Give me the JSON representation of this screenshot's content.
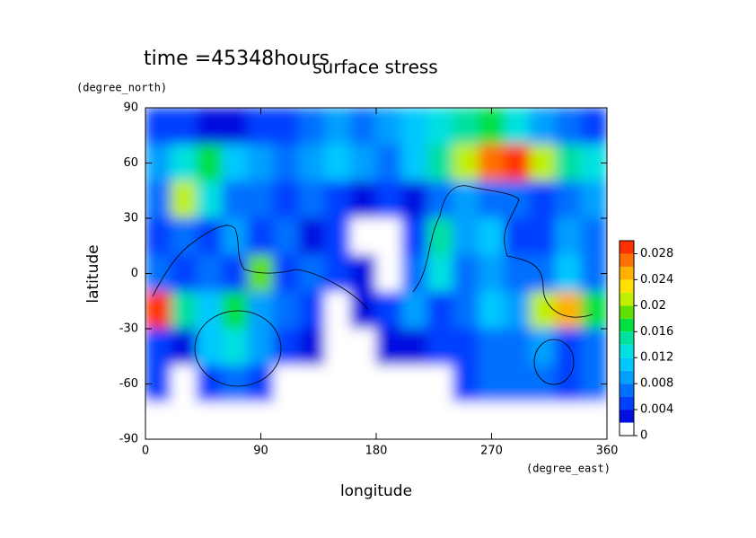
{
  "chart_data": {
    "type": "contour",
    "title": "time =45348hours",
    "subtitle": "surface stress",
    "x_label": "longitude",
    "x_unit": "(degree_east)",
    "y_label": "latitude",
    "y_unit": "(degree_north)",
    "xlim": [
      0,
      360
    ],
    "xticks": [
      0,
      90,
      180,
      270,
      360
    ],
    "ylim": [
      -90,
      90
    ],
    "yticks": [
      -90,
      -60,
      -30,
      0,
      30,
      60,
      90
    ],
    "x": [
      10,
      30,
      50,
      70,
      90,
      110,
      130,
      150,
      170,
      190,
      210,
      230,
      250,
      270,
      290,
      310,
      330,
      350
    ],
    "y": [
      80,
      60,
      40,
      20,
      0,
      -20,
      -40,
      -60,
      -80
    ],
    "z": [
      [
        0.004,
        0.004,
        0.003,
        0.003,
        0.004,
        0.005,
        0.006,
        0.008,
        0.006,
        0.008,
        0.01,
        0.012,
        0.014,
        0.016,
        0.012,
        0.008,
        0.006,
        0.004
      ],
      [
        0.008,
        0.012,
        0.016,
        0.01,
        0.008,
        0.006,
        0.008,
        0.01,
        0.008,
        0.006,
        0.01,
        0.014,
        0.02,
        0.026,
        0.03,
        0.02,
        0.014,
        0.012
      ],
      [
        0.006,
        0.02,
        0.012,
        0.006,
        0.006,
        0.004,
        0.006,
        0.004,
        0.002,
        0.004,
        0.002,
        0.006,
        0.008,
        0.006,
        0.006,
        0.004,
        0.006,
        0.008
      ],
      [
        0.004,
        0.006,
        0.004,
        0.008,
        0.004,
        0.006,
        0.002,
        0.004,
        0.001,
        0.001,
        0.004,
        0.014,
        0.008,
        0.01,
        0.004,
        0.004,
        0.008,
        0.006
      ],
      [
        0.006,
        0.004,
        0.006,
        0.004,
        0.018,
        0.004,
        0.006,
        0.004,
        0.002,
        0.001,
        0.006,
        0.012,
        0.006,
        0.008,
        0.006,
        0.006,
        0.01,
        0.006
      ],
      [
        0.028,
        0.014,
        0.01,
        0.016,
        0.008,
        0.006,
        0.004,
        0.001,
        0.002,
        0.004,
        0.008,
        0.004,
        0.006,
        0.01,
        0.008,
        0.02,
        0.024,
        0.016
      ],
      [
        0.004,
        0.002,
        0.01,
        0.012,
        0.008,
        0.004,
        0.002,
        0.001,
        0.001,
        0.002,
        0.002,
        0.004,
        0.004,
        0.006,
        0.006,
        0.008,
        0.004,
        0.006
      ],
      [
        0.004,
        0.001,
        0.004,
        0.006,
        0.004,
        0.001,
        0.001,
        0.001,
        0.001,
        0.001,
        0.001,
        0.001,
        0.004,
        0.006,
        0.006,
        0.006,
        0.004,
        0.006
      ],
      [
        0.001,
        0.001,
        0.001,
        0.001,
        0.001,
        0.001,
        0.001,
        0.001,
        0.001,
        0.001,
        0.001,
        0.001,
        0.001,
        0.001,
        0.001,
        0.001,
        0.001,
        0.001
      ]
    ],
    "levels": [
      0,
      0.002,
      0.004,
      0.006,
      0.008,
      0.01,
      0.012,
      0.014,
      0.016,
      0.018,
      0.02,
      0.022,
      0.024,
      0.026,
      0.028
    ],
    "colors": [
      "#ffffff",
      "#0010e0",
      "#0040ff",
      "#0070ff",
      "#00a0ff",
      "#00c8ff",
      "#00e0e0",
      "#00e0a0",
      "#00e040",
      "#60e000",
      "#c0f000",
      "#ffe000",
      "#ffb000",
      "#ff7000",
      "#ff3000"
    ],
    "zlim": [
      0,
      0.03
    ],
    "zticks": [
      0,
      0.004,
      0.008,
      0.012,
      0.016,
      0.02,
      0.024,
      0.028
    ]
  }
}
